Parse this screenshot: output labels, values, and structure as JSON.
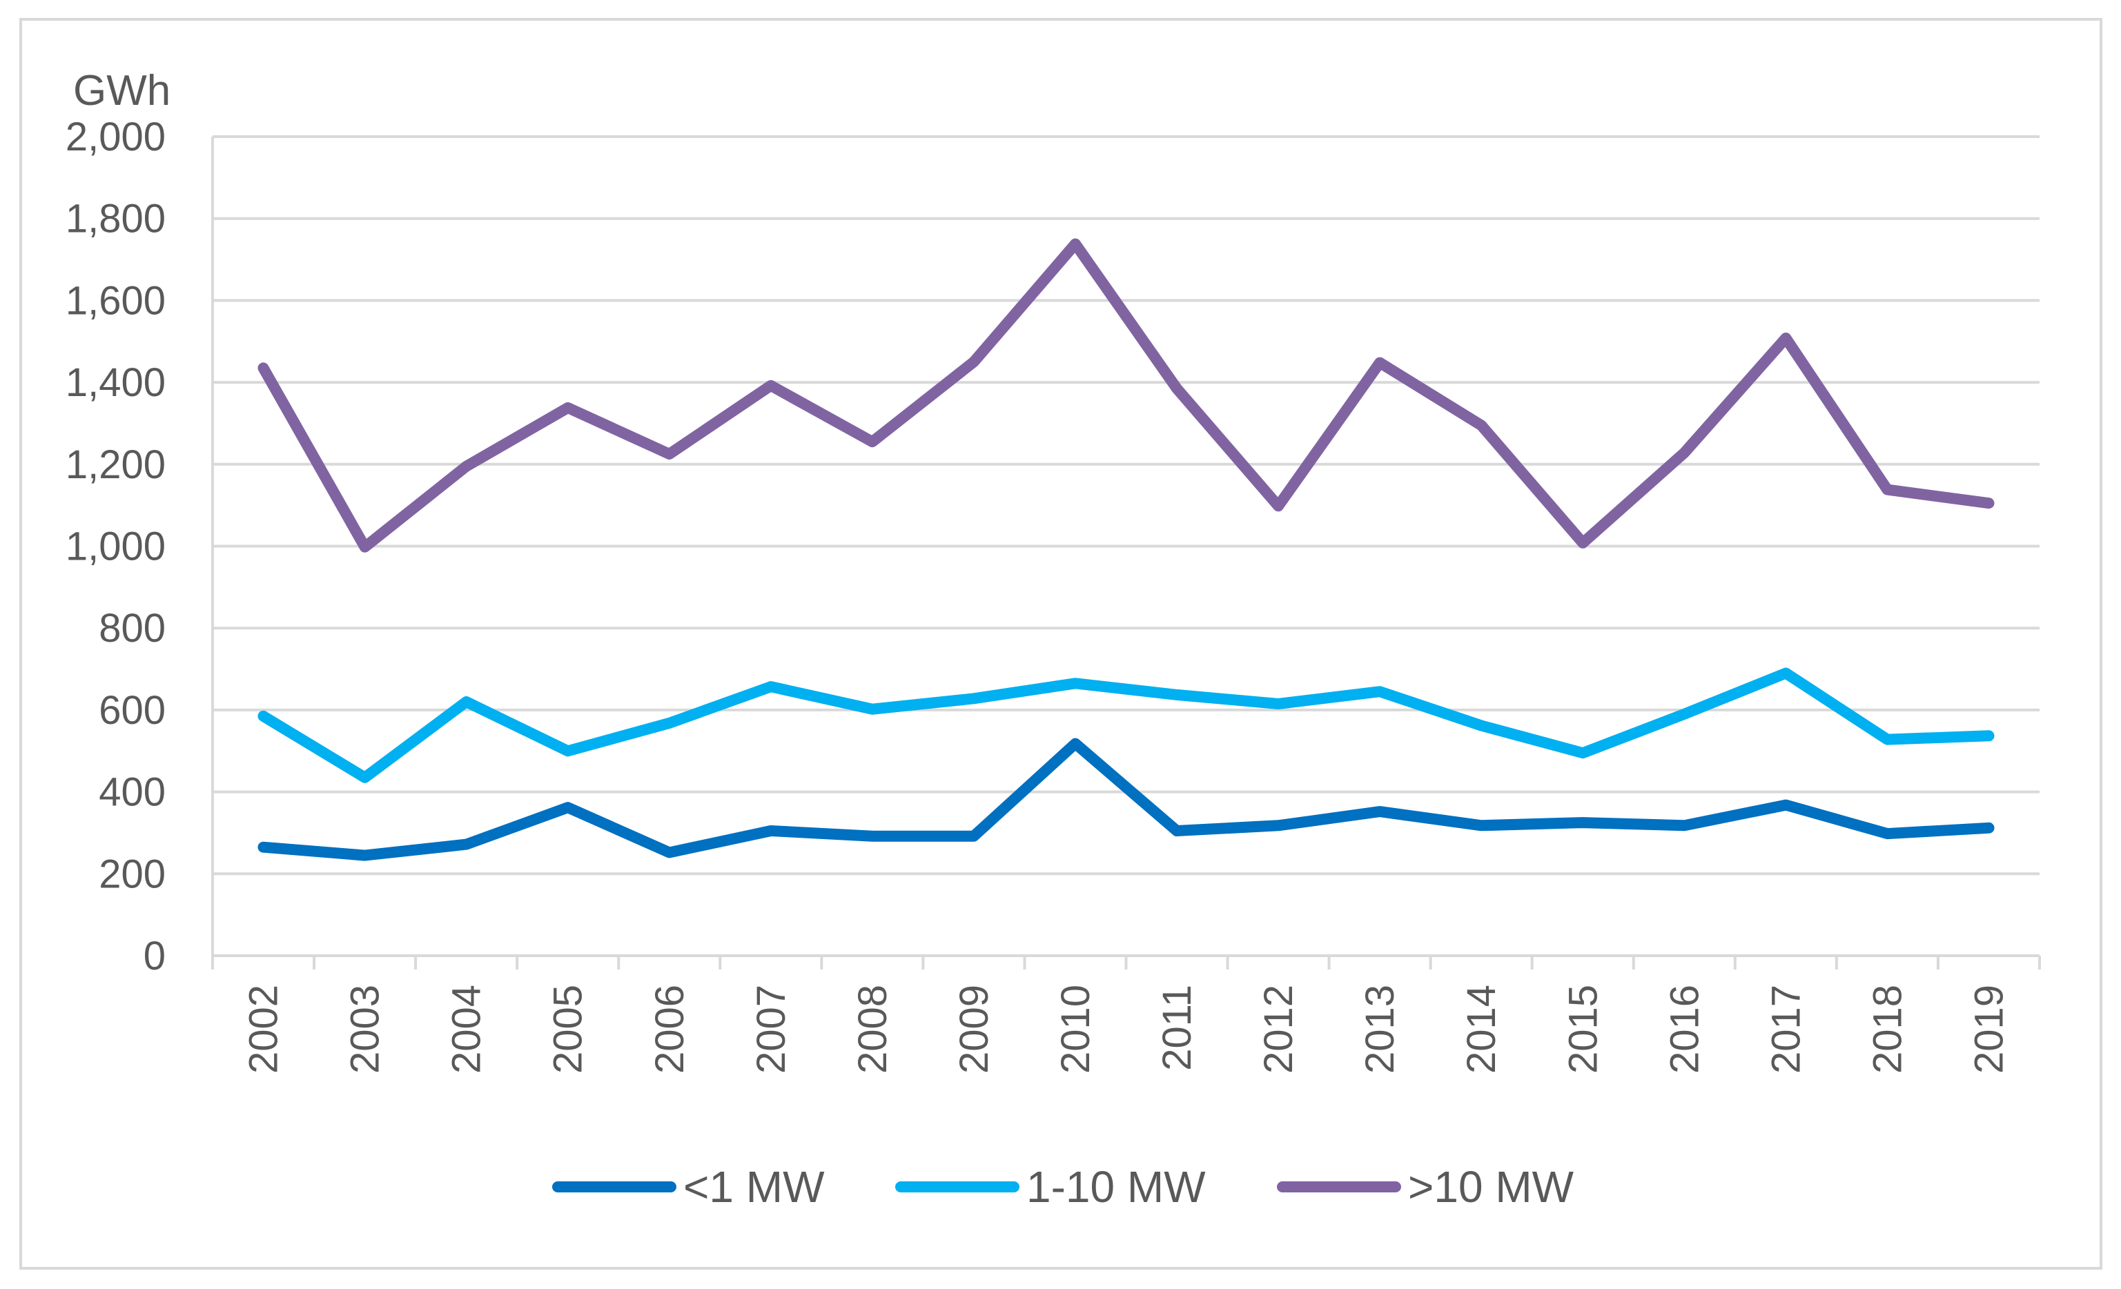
{
  "chart_data": {
    "type": "line",
    "unit_label": "GWh",
    "categories": [
      "2002",
      "2003",
      "2004",
      "2005",
      "2006",
      "2007",
      "2008",
      "2009",
      "2010",
      "2011",
      "2012",
      "2013",
      "2014",
      "2015",
      "2016",
      "2017",
      "2018",
      "2019"
    ],
    "y_ticks": [
      0,
      200,
      400,
      600,
      800,
      1000,
      1200,
      1400,
      1600,
      1800,
      2000
    ],
    "y_tick_labels": [
      "0",
      "200",
      "400",
      "600",
      "800",
      "1,000",
      "1,200",
      "1,400",
      "1,600",
      "1,800",
      "2,000"
    ],
    "ylim": [
      0,
      2000
    ],
    "grid": true,
    "legend_position": "bottom",
    "series": [
      {
        "name": "<1 MW",
        "color": "#0070c0",
        "values": [
          265,
          245,
          272,
          362,
          252,
          305,
          292,
          292,
          518,
          305,
          318,
          352,
          318,
          325,
          318,
          368,
          298,
          312
        ]
      },
      {
        "name": "1-10 MW",
        "color": "#00b0f0",
        "values": [
          585,
          435,
          620,
          500,
          568,
          657,
          602,
          628,
          665,
          637,
          615,
          645,
          562,
          495,
          590,
          690,
          528,
          537
        ]
      },
      {
        "name": ">10 MW",
        "color": "#8064a2",
        "values": [
          1435,
          998,
          1195,
          1338,
          1225,
          1392,
          1255,
          1450,
          1738,
          1385,
          1098,
          1448,
          1295,
          1008,
          1228,
          1508,
          1138,
          1105
        ]
      }
    ]
  }
}
